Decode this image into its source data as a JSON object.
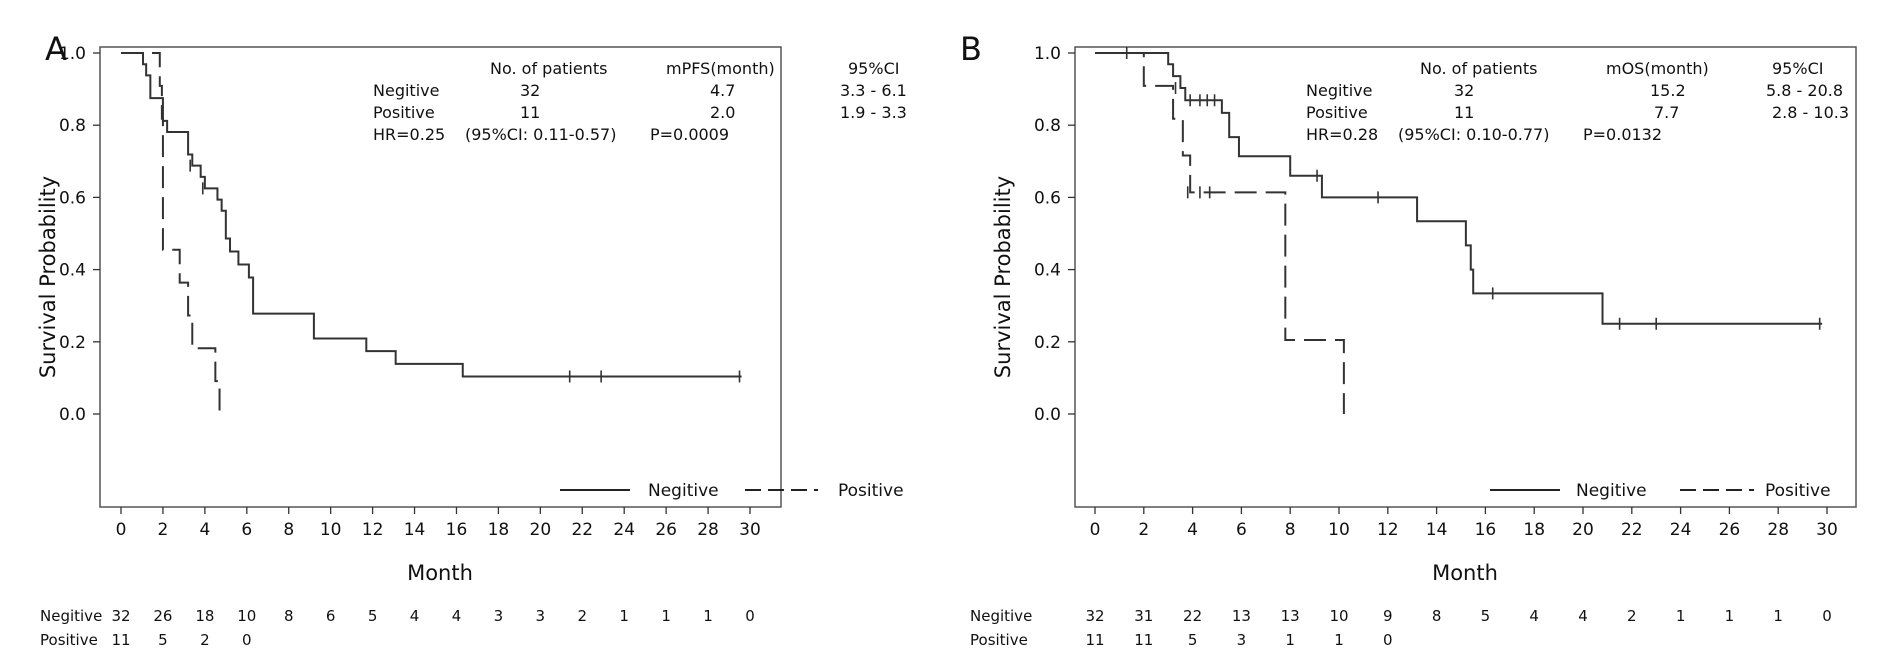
{
  "chart_data": [
    {
      "panel_label": "A",
      "type": "line",
      "subtype": "kaplan-meier",
      "xlabel": "Month",
      "ylabel": "Survival Probability",
      "xlim": [
        0,
        30
      ],
      "ylim": [
        0,
        1.0
      ],
      "xticks": [
        "0",
        "2",
        "4",
        "6",
        "8",
        "10",
        "12",
        "14",
        "16",
        "18",
        "20",
        "22",
        "24",
        "26",
        "28",
        "30"
      ],
      "yticks": [
        "0.0",
        "0.2",
        "0.4",
        "0.6",
        "0.8",
        "1.0"
      ],
      "legend": {
        "position": "bottom-right",
        "items": [
          {
            "name": "Negitive",
            "style": "solid"
          },
          {
            "name": "Positive",
            "style": "dashed"
          }
        ]
      },
      "stats": {
        "headers": [
          "No. of patients",
          "mPFS(month)",
          "95%CI"
        ],
        "rows": [
          {
            "group": "Negitive",
            "n": "32",
            "median": "4.7",
            "ci": "3.3 - 6.1"
          },
          {
            "group": "Positive",
            "n": "11",
            "median": "2.0",
            "ci": "1.9 - 3.3"
          }
        ],
        "hr_text": "HR=0.25",
        "hr_ci_text": "(95%CI: 0.11-0.57)",
        "p_text": "P=0.0009"
      },
      "series": [
        {
          "name": "Negitive",
          "style": "solid",
          "steps": [
            [
              0,
              1.0
            ],
            [
              1.05,
              0.969
            ],
            [
              1.2,
              0.938
            ],
            [
              1.4,
              0.875
            ],
            [
              2.0,
              0.812
            ],
            [
              2.2,
              0.781
            ],
            [
              3.2,
              0.719
            ],
            [
              3.4,
              0.688
            ],
            [
              3.8,
              0.657
            ],
            [
              4.0,
              0.625
            ],
            [
              4.6,
              0.594
            ],
            [
              4.8,
              0.563
            ],
            [
              5.0,
              0.486
            ],
            [
              5.2,
              0.45
            ],
            [
              5.6,
              0.414
            ],
            [
              6.1,
              0.378
            ],
            [
              6.3,
              0.278
            ],
            [
              9.2,
              0.209
            ],
            [
              11.7,
              0.174
            ],
            [
              13.1,
              0.139
            ],
            [
              16.3,
              0.104
            ],
            [
              29.6,
              0.104
            ]
          ],
          "censored": [
            [
              3.3,
              0.688
            ],
            [
              3.9,
              0.625
            ],
            [
              21.4,
              0.104
            ],
            [
              22.9,
              0.104
            ],
            [
              29.5,
              0.104
            ]
          ]
        },
        {
          "name": "Positive",
          "style": "dashed",
          "steps": [
            [
              0,
              1.0
            ],
            [
              1.85,
              0.909
            ],
            [
              1.95,
              0.818
            ],
            [
              2.0,
              0.455
            ],
            [
              2.8,
              0.364
            ],
            [
              3.2,
              0.273
            ],
            [
              3.4,
              0.182
            ],
            [
              4.5,
              0.091
            ],
            [
              4.7,
              0.0
            ]
          ],
          "censored": []
        }
      ],
      "at_risk": {
        "rows": [
          {
            "label": "Negitive",
            "values": [
              "32",
              "26",
              "18",
              "10",
              "8",
              "6",
              "5",
              "4",
              "4",
              "3",
              "3",
              "2",
              "1",
              "1",
              "1",
              "0"
            ]
          },
          {
            "label": "Positive",
            "values": [
              "11",
              "5",
              "2",
              "0"
            ]
          }
        ]
      }
    },
    {
      "panel_label": "B",
      "type": "line",
      "subtype": "kaplan-meier",
      "xlabel": "Month",
      "ylabel": "Survival Probability",
      "xlim": [
        0,
        30
      ],
      "ylim": [
        0,
        1.0
      ],
      "xticks": [
        "0",
        "2",
        "4",
        "6",
        "8",
        "10",
        "12",
        "14",
        "16",
        "18",
        "20",
        "22",
        "24",
        "26",
        "28",
        "30"
      ],
      "yticks": [
        "0.0",
        "0.2",
        "0.4",
        "0.6",
        "0.8",
        "1.0"
      ],
      "legend": {
        "position": "bottom-right",
        "items": [
          {
            "name": "Negitive",
            "style": "solid"
          },
          {
            "name": "Positive",
            "style": "dashed"
          }
        ]
      },
      "stats": {
        "headers": [
          "No. of patients",
          "mOS(month)",
          "95%CI"
        ],
        "rows": [
          {
            "group": "Negitive",
            "n": "32",
            "median": "15.2",
            "ci": "5.8 - 20.8"
          },
          {
            "group": "Positive",
            "n": "11",
            "median": "7.7",
            "ci": "2.8 - 10.3"
          }
        ],
        "hr_text": "HR=0.28",
        "hr_ci_text": "(95%CI: 0.10-0.77)",
        "p_text": "P=0.0132"
      },
      "series": [
        {
          "name": "Negitive",
          "style": "solid",
          "steps": [
            [
              0,
              1.0
            ],
            [
              3.0,
              0.969
            ],
            [
              3.2,
              0.936
            ],
            [
              3.5,
              0.903
            ],
            [
              3.7,
              0.869
            ],
            [
              5.2,
              0.834
            ],
            [
              5.5,
              0.767
            ],
            [
              5.9,
              0.714
            ],
            [
              8.0,
              0.66
            ],
            [
              9.3,
              0.6
            ],
            [
              13.2,
              0.534
            ],
            [
              15.2,
              0.467
            ],
            [
              15.4,
              0.4
            ],
            [
              15.5,
              0.334
            ],
            [
              20.8,
              0.25
            ],
            [
              29.8,
              0.25
            ]
          ],
          "censored": [
            [
              1.3,
              1.0
            ],
            [
              3.3,
              0.903
            ],
            [
              3.9,
              0.869
            ],
            [
              4.3,
              0.869
            ],
            [
              4.6,
              0.869
            ],
            [
              4.9,
              0.869
            ],
            [
              9.1,
              0.66
            ],
            [
              11.6,
              0.6
            ],
            [
              16.3,
              0.334
            ],
            [
              21.5,
              0.25
            ],
            [
              23.0,
              0.25
            ],
            [
              29.7,
              0.25
            ]
          ]
        },
        {
          "name": "Positive",
          "style": "dashed",
          "steps": [
            [
              0,
              1.0
            ],
            [
              2.0,
              0.909
            ],
            [
              3.2,
              0.818
            ],
            [
              3.6,
              0.716
            ],
            [
              3.9,
              0.614
            ],
            [
              7.8,
              0.205
            ],
            [
              10.2,
              0.0
            ]
          ],
          "censored": [
            [
              3.8,
              0.614
            ],
            [
              4.3,
              0.614
            ],
            [
              4.7,
              0.614
            ]
          ]
        }
      ],
      "at_risk": {
        "rows": [
          {
            "label": "Negitive",
            "values": [
              "32",
              "31",
              "22",
              "13",
              "13",
              "10",
              "9",
              "8",
              "5",
              "4",
              "4",
              "2",
              "1",
              "1",
              "1",
              "0"
            ]
          },
          {
            "label": "Positive",
            "values": [
              "11",
              "11",
              "5",
              "3",
              "1",
              "1",
              "0"
            ]
          }
        ]
      }
    }
  ]
}
